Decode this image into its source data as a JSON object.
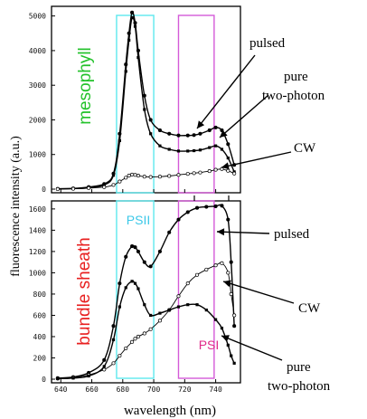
{
  "chart_data": [
    {
      "type": "line",
      "panel": "top",
      "panel_label": "mesophyll",
      "x": [
        638,
        648,
        658,
        668,
        674,
        678,
        682,
        684,
        686,
        688,
        690,
        694,
        698,
        704,
        710,
        716,
        722,
        726,
        730,
        736,
        740,
        744,
        748,
        752
      ],
      "xlim": [
        634,
        756
      ],
      "ylim": [
        0,
        5200
      ],
      "yticks": [
        "0",
        "1000",
        "2000",
        "3000",
        "4000",
        "5000"
      ],
      "series": [
        {
          "name": "pulsed",
          "values": [
            10,
            20,
            60,
            150,
            450,
            1600,
            3600,
            4500,
            5100,
            4800,
            4000,
            2700,
            2000,
            1700,
            1600,
            1550,
            1550,
            1560,
            1600,
            1700,
            1780,
            1700,
            1300,
            700
          ]
        },
        {
          "name": "pure two-photon",
          "values": [
            8,
            15,
            40,
            120,
            400,
            1400,
            3400,
            4300,
            4950,
            4700,
            3800,
            2300,
            1600,
            1250,
            1150,
            1100,
            1100,
            1110,
            1130,
            1200,
            1250,
            1150,
            900,
            500
          ]
        },
        {
          "name": "CW",
          "values": [
            0,
            10,
            30,
            60,
            120,
            220,
            330,
            390,
            420,
            410,
            390,
            360,
            350,
            360,
            380,
            410,
            440,
            460,
            480,
            520,
            560,
            580,
            530,
            450
          ]
        }
      ],
      "annotations": {
        "pulsed": "pulsed",
        "two_photon": [
          "pure",
          "two-photon"
        ],
        "cw": "CW"
      },
      "x_markers": [
        "",
        ""
      ]
    },
    {
      "type": "line",
      "panel": "bottom",
      "panel_label": "bundle sheath",
      "x": [
        638,
        648,
        658,
        668,
        674,
        678,
        682,
        686,
        688,
        690,
        694,
        698,
        704,
        710,
        716,
        722,
        728,
        734,
        740,
        744,
        748,
        750,
        752
      ],
      "xlim": [
        634,
        756
      ],
      "ylim": [
        0,
        1650
      ],
      "xticks": [
        "640",
        "660",
        "680",
        "700",
        "720",
        "740"
      ],
      "yticks": [
        "0",
        "200",
        "400",
        "600",
        "800",
        "1000",
        "1200",
        "1400",
        "1600"
      ],
      "series": [
        {
          "name": "pulsed",
          "values": [
            10,
            20,
            60,
            180,
            500,
            900,
            1150,
            1250,
            1240,
            1200,
            1100,
            1060,
            1200,
            1380,
            1500,
            1570,
            1610,
            1620,
            1625,
            1630,
            1500,
            1100,
            500
          ]
        },
        {
          "name": "CW",
          "values": [
            5,
            15,
            40,
            90,
            150,
            220,
            290,
            350,
            380,
            400,
            430,
            470,
            550,
            650,
            780,
            900,
            980,
            1030,
            1070,
            1090,
            1000,
            800,
            600
          ]
        },
        {
          "name": "pure two-photon",
          "values": [
            5,
            10,
            30,
            120,
            370,
            680,
            860,
            920,
            900,
            850,
            700,
            600,
            620,
            650,
            680,
            700,
            700,
            650,
            560,
            480,
            320,
            220,
            150
          ]
        }
      ],
      "annotations": {
        "pulsed": "pulsed",
        "cw": "CW",
        "two_photon": [
          "pure",
          "two-photon"
        ]
      }
    }
  ],
  "shared": {
    "ylabel": "fluorescence intensity (a.u.)",
    "xlabel": "wavelength (nm)",
    "band_psii": {
      "label": "PSII",
      "range": [
        676,
        700
      ],
      "color": "#5ee8ee"
    },
    "band_psi": {
      "label": "PSI",
      "range": [
        716,
        739
      ],
      "color": "#d45ad8"
    },
    "label_colors": {
      "mesophyll": "#22c22a",
      "bundle_sheath": "#e82020"
    }
  }
}
